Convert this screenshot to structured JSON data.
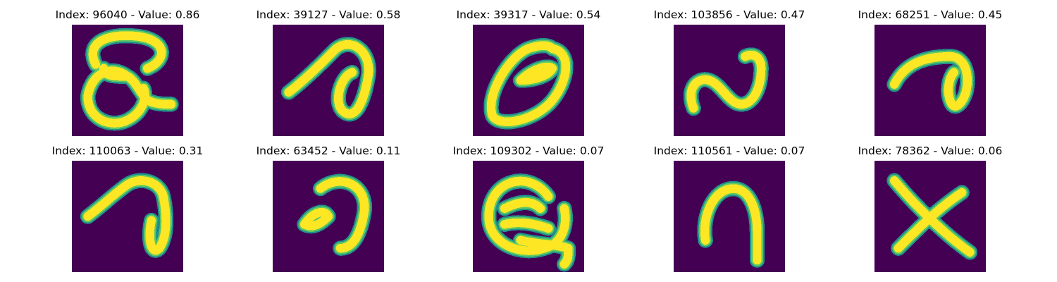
{
  "colors": {
    "background": "#440154",
    "stroke_edge": "#21918c",
    "stroke_mid": "#5ec962",
    "stroke_core": "#fde725"
  },
  "panels": [
    {
      "title": "Index: 96040 - Value: 0.86",
      "glyph": "loop-q"
    },
    {
      "title": "Index: 39127 - Value: 0.58",
      "glyph": "hook-a"
    },
    {
      "title": "Index: 39317 - Value: 0.54",
      "glyph": "oval-0"
    },
    {
      "title": "Index: 103856 - Value: 0.47",
      "glyph": "wave-s"
    },
    {
      "title": "Index: 68251 - Value: 0.45",
      "glyph": "arch-hook"
    },
    {
      "title": "Index: 110063 - Value: 0.31",
      "glyph": "arch-loop"
    },
    {
      "title": "Index: 63452 - Value: 0.11",
      "glyph": "curl-9"
    },
    {
      "title": "Index: 109302 - Value: 0.07",
      "glyph": "scribble-e"
    },
    {
      "title": "Index: 110561 - Value: 0.07",
      "glyph": "arch-n"
    },
    {
      "title": "Index: 78362 - Value: 0.06",
      "glyph": "cross-x"
    }
  ]
}
